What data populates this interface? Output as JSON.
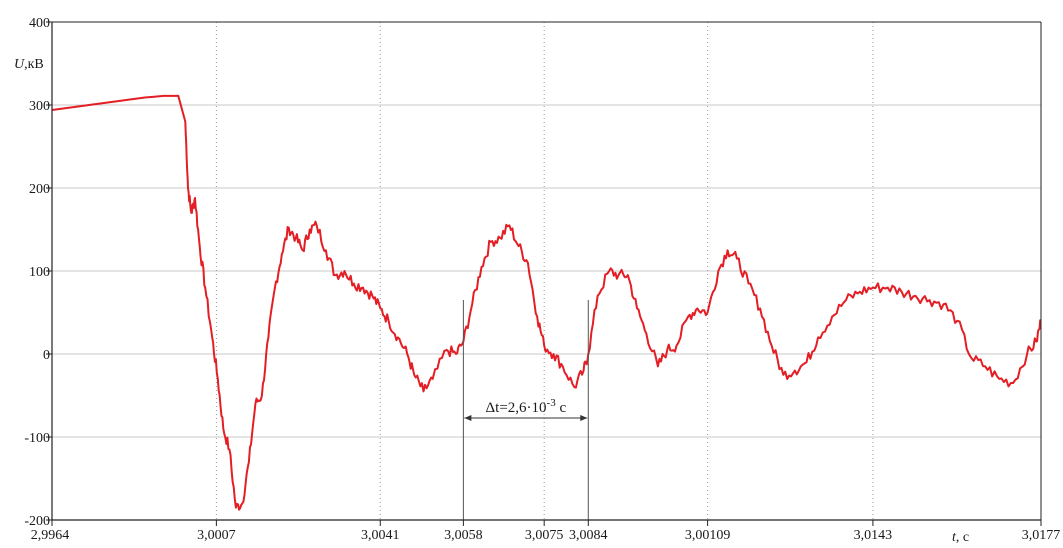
{
  "chart_data": {
    "type": "line",
    "ylabel_var": "U",
    "ylabel_unit": ",кВ",
    "xlabel_var": "t",
    "xlabel_unit": ", с",
    "xlim": [
      2.9964,
      3.0177
    ],
    "ylim": [
      -200,
      400
    ],
    "y_ticks": [
      {
        "value": -200,
        "label": "-200"
      },
      {
        "value": -100,
        "label": "-100"
      },
      {
        "value": 0,
        "label": "0"
      },
      {
        "value": 100,
        "label": "100"
      },
      {
        "value": 200,
        "label": "200"
      },
      {
        "value": 300,
        "label": "300"
      },
      {
        "value": 400,
        "label": "400"
      }
    ],
    "x_ticks": [
      {
        "value": 2.9964,
        "label": "2,9964"
      },
      {
        "value": 2.99994,
        "label": "3,0007"
      },
      {
        "value": 3.00347,
        "label": "3,0041"
      },
      {
        "value": 3.00526,
        "label": "3,0058"
      },
      {
        "value": 3.007,
        "label": "3,0075"
      },
      {
        "value": 3.00795,
        "label": "3,0084"
      },
      {
        "value": 3.01052,
        "label": "3,00109"
      },
      {
        "value": 3.01408,
        "label": "3,0143"
      },
      {
        "value": 3.0177,
        "label": "3,0177"
      }
    ],
    "grid": {
      "horizontal": true,
      "vertical_dotted": true
    },
    "series": [
      {
        "color": "#e31e24",
        "x": [
          2.9964,
          2.9968,
          2.9972,
          2.9976,
          2.998,
          2.9984,
          2.9988,
          2.99912,
          2.99927,
          2.99933,
          2.9994,
          2.99948,
          2.99958,
          2.9997,
          2.99985,
          2.99997,
          3.00009,
          3.00022,
          3.00036,
          3.0005,
          3.00064,
          3.00078,
          3.00092,
          3.00106,
          3.0012,
          3.00135,
          3.0015,
          3.00165,
          3.0018,
          3.00195,
          3.0021,
          3.0023,
          3.0025,
          3.0027,
          3.0029,
          3.0031,
          3.0033,
          3.00347,
          3.00365,
          3.00385,
          3.00405,
          3.0042,
          3.0044,
          3.0046,
          3.0049,
          3.0051,
          3.00526,
          3.00545,
          3.00565,
          3.00585,
          3.00605,
          3.00625,
          3.00645,
          3.00665,
          3.00685,
          3.007,
          3.0072,
          3.0074,
          3.00765,
          3.00785,
          3.00795,
          3.00815,
          3.0084,
          3.0086,
          3.0088,
          3.009,
          3.0092,
          3.00945,
          3.00965,
          3.00985,
          3.0101,
          3.0103,
          3.01052,
          3.01075,
          3.01095,
          3.01115,
          3.0114,
          3.01165,
          3.0119,
          3.01215,
          3.0124,
          3.01265,
          3.0129,
          3.0132,
          3.0135,
          3.0138,
          3.01408,
          3.0144,
          3.0147,
          3.015,
          3.0153,
          3.0156,
          3.0159,
          3.0162,
          3.0165,
          3.0168,
          3.0171,
          3.0174,
          3.0176,
          3.0177
        ],
        "y": [
          294,
          297,
          300,
          303,
          306,
          309,
          311,
          311,
          280,
          200,
          170,
          188,
          130,
          80,
          20,
          -30,
          -90,
          -115,
          -185,
          -180,
          -130,
          -60,
          -50,
          20,
          80,
          120,
          152,
          140,
          125,
          150,
          155,
          125,
          95,
          100,
          85,
          80,
          70,
          55,
          40,
          20,
          0,
          -25,
          -45,
          -30,
          5,
          0,
          15,
          60,
          105,
          135,
          140,
          155,
          130,
          110,
          45,
          10,
          0,
          -15,
          -40,
          -20,
          0,
          70,
          100,
          95,
          95,
          55,
          25,
          -15,
          5,
          10,
          45,
          55,
          50,
          100,
          125,
          115,
          85,
          55,
          10,
          -25,
          -20,
          -10,
          20,
          45,
          65,
          75,
          80,
          80,
          75,
          70,
          65,
          60,
          40,
          -5,
          -15,
          -30,
          -35,
          0,
          15,
          40
        ]
      }
    ],
    "annotations": [
      {
        "type": "interval",
        "x1": 3.00526,
        "x2": 3.00795,
        "label_main": "Δt=2,6·10",
        "label_exp": "-3",
        "label_unit": " с"
      }
    ]
  }
}
